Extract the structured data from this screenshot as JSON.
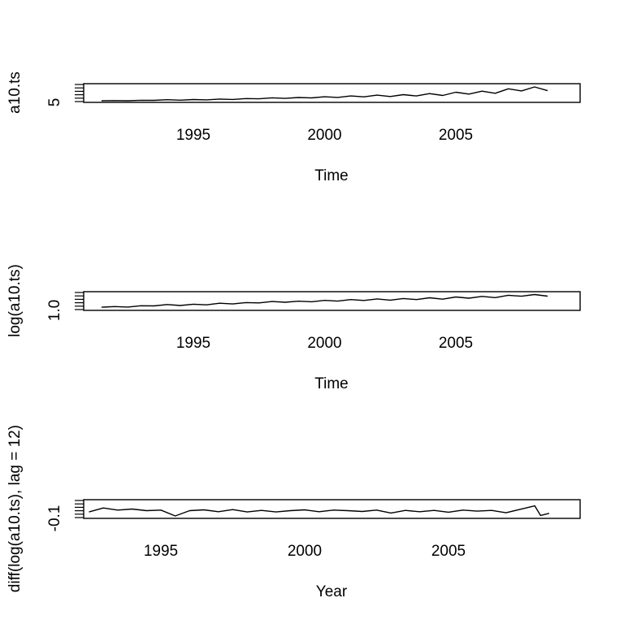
{
  "chart_data": [
    {
      "type": "line",
      "xlabel": "Time",
      "ylabel": "a10.ts",
      "x_range": [
        1991.5,
        2008.5
      ],
      "y_range": [
        2.0,
        31.0
      ],
      "x_ticks": [
        1995,
        2000,
        2005
      ],
      "y_tick_labels": [
        "5"
      ],
      "series": [
        {
          "x": [
            1991.5,
            1992,
            1992.5,
            1993,
            1993.5,
            1994,
            1994.5,
            1995,
            1995.5,
            1996,
            1996.5,
            1997,
            1997.5,
            1998,
            1998.5,
            1999,
            1999.5,
            2000,
            2000.5,
            2001,
            2001.5,
            2002,
            2002.5,
            2003,
            2003.5,
            2004,
            2004.5,
            2005,
            2005.5,
            2006,
            2006.5,
            2007,
            2007.5,
            2008,
            2008.5
          ],
          "y": [
            3.5,
            3.9,
            3.6,
            4.5,
            4.3,
            5.5,
            4.6,
            5.8,
            5.2,
            6.8,
            6.0,
            7.6,
            7.2,
            9.0,
            8.0,
            9.6,
            8.8,
            11.0,
            9.8,
            12.5,
            10.8,
            14.0,
            11.5,
            15.0,
            12.5,
            17.0,
            13.5,
            19.5,
            16.0,
            21.5,
            17.5,
            26.0,
            22.0,
            29.5,
            22.5
          ]
        }
      ]
    },
    {
      "type": "line",
      "xlabel": "Time",
      "ylabel": "log(a10.ts)",
      "x_range": [
        1991.5,
        2008.5
      ],
      "y_range": [
        0.85,
        3.45
      ],
      "x_ticks": [
        1995,
        2000,
        2005
      ],
      "y_tick_labels": [
        "1.0"
      ],
      "series": [
        {
          "x": [
            1991.5,
            1992,
            1992.5,
            1993,
            1993.5,
            1994,
            1994.5,
            1995,
            1995.5,
            1996,
            1996.5,
            1997,
            1997.5,
            1998,
            1998.5,
            1999,
            1999.5,
            2000,
            2000.5,
            2001,
            2001.5,
            2002,
            2002.5,
            2003,
            2003.5,
            2004,
            2004.5,
            2005,
            2005.5,
            2006,
            2006.5,
            2007,
            2007.5,
            2008,
            2008.5
          ],
          "y": [
            1.25,
            1.36,
            1.28,
            1.5,
            1.46,
            1.7,
            1.53,
            1.76,
            1.65,
            1.92,
            1.79,
            2.03,
            1.97,
            2.2,
            2.08,
            2.26,
            2.17,
            2.4,
            2.28,
            2.53,
            2.38,
            2.64,
            2.44,
            2.71,
            2.53,
            2.83,
            2.6,
            2.97,
            2.77,
            3.07,
            2.86,
            3.26,
            3.09,
            3.38,
            3.11
          ]
        }
      ]
    },
    {
      "type": "line",
      "xlabel": "Year",
      "ylabel": "diff(log(a10.ts), lag = 12)",
      "x_range": [
        1992.5,
        2008.5
      ],
      "y_range": [
        -0.16,
        0.42
      ],
      "x_ticks": [
        1995,
        2000,
        2005
      ],
      "y_tick_labels": [
        "-0.1"
      ],
      "series": [
        {
          "x": [
            1992.5,
            1993,
            1993.5,
            1994,
            1994.5,
            1995,
            1995.5,
            1996,
            1996.5,
            1997,
            1997.5,
            1998,
            1998.5,
            1999,
            1999.5,
            2000,
            2000.5,
            2001,
            2001.5,
            2002,
            2002.5,
            2003,
            2003.5,
            2004,
            2004.5,
            2005,
            2005.5,
            2006,
            2006.5,
            2007,
            2007.5,
            2008,
            2008.2,
            2008.5
          ],
          "y": [
            0.05,
            0.2,
            0.12,
            0.16,
            0.1,
            0.12,
            -0.1,
            0.1,
            0.13,
            0.06,
            0.14,
            0.05,
            0.11,
            0.05,
            0.1,
            0.13,
            0.06,
            0.12,
            0.1,
            0.07,
            0.12,
            0.01,
            0.11,
            0.06,
            0.11,
            0.04,
            0.12,
            0.08,
            0.11,
            0.02,
            0.15,
            0.28,
            -0.08,
            0.0
          ]
        }
      ]
    }
  ]
}
